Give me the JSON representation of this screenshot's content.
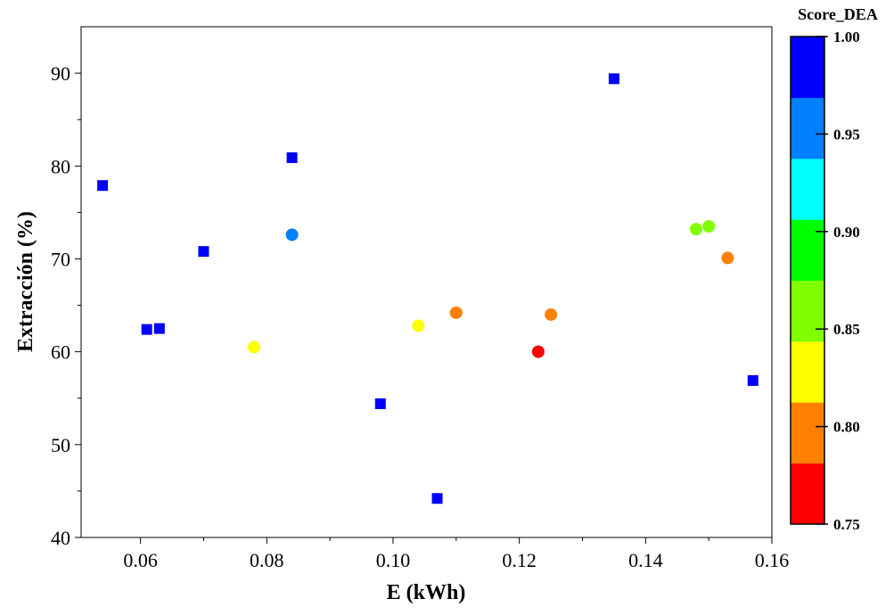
{
  "chart_data": {
    "type": "scatter",
    "xlabel": "E (kWh)",
    "ylabel": "Extracción (%)",
    "xlim": [
      0.0506,
      0.16
    ],
    "ylim": [
      40,
      95
    ],
    "xticks": [
      "0.06",
      "0.08",
      "0.10",
      "0.12",
      "0.14",
      "0.16"
    ],
    "yticks": [
      "40",
      "50",
      "60",
      "70",
      "80",
      "90"
    ],
    "grid": false,
    "colorbar": {
      "title": "Score_DEA",
      "range": [
        0.75,
        1.0
      ],
      "ticks": [
        "0.75",
        "0.80",
        "0.85",
        "0.90",
        "0.95",
        "1.00"
      ],
      "band_colors": [
        "#ff0000",
        "#ff8000",
        "#ffff00",
        "#80ff00",
        "#00ff00",
        "#00ffff",
        "#0080ff",
        "#0000ff"
      ]
    },
    "points": [
      {
        "x": 0.054,
        "y": 77.9,
        "score": 1.0,
        "marker": "square"
      },
      {
        "x": 0.061,
        "y": 62.4,
        "score": 1.0,
        "marker": "square"
      },
      {
        "x": 0.063,
        "y": 62.5,
        "score": 1.0,
        "marker": "square"
      },
      {
        "x": 0.07,
        "y": 70.8,
        "score": 1.0,
        "marker": "square"
      },
      {
        "x": 0.084,
        "y": 80.9,
        "score": 1.0,
        "marker": "square"
      },
      {
        "x": 0.098,
        "y": 54.4,
        "score": 1.0,
        "marker": "square"
      },
      {
        "x": 0.107,
        "y": 44.2,
        "score": 1.0,
        "marker": "square"
      },
      {
        "x": 0.135,
        "y": 89.4,
        "score": 1.0,
        "marker": "square"
      },
      {
        "x": 0.157,
        "y": 56.9,
        "score": 1.0,
        "marker": "square"
      },
      {
        "x": 0.084,
        "y": 72.6,
        "score": 0.96,
        "marker": "circle"
      },
      {
        "x": 0.078,
        "y": 60.5,
        "score": 0.83,
        "marker": "circle"
      },
      {
        "x": 0.104,
        "y": 62.8,
        "score": 0.83,
        "marker": "circle"
      },
      {
        "x": 0.11,
        "y": 64.2,
        "score": 0.8,
        "marker": "circle"
      },
      {
        "x": 0.125,
        "y": 64.0,
        "score": 0.8,
        "marker": "circle"
      },
      {
        "x": 0.123,
        "y": 60.0,
        "score": 0.76,
        "marker": "circle"
      },
      {
        "x": 0.148,
        "y": 73.2,
        "score": 0.86,
        "marker": "circle"
      },
      {
        "x": 0.15,
        "y": 73.5,
        "score": 0.86,
        "marker": "circle"
      },
      {
        "x": 0.153,
        "y": 70.1,
        "score": 0.8,
        "marker": "circle"
      }
    ]
  }
}
